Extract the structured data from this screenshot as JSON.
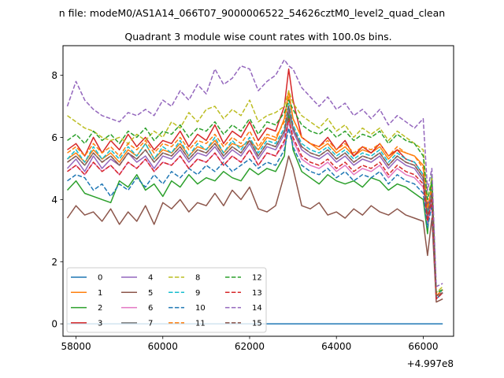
{
  "chart_data": {
    "type": "line",
    "suptitle": "n file: modeM0/AS1A14_066T07_9000006522_54626cztM0_level2_quad_clean",
    "title": "Quadrant 3 module wise count rates with 100.0s bins.",
    "xlabel": "",
    "ylabel": "",
    "x_offset_label": "+4.997e8",
    "xlim": [
      57700,
      66700
    ],
    "ylim": [
      -0.4,
      8.95
    ],
    "x_ticks": [
      58000,
      60000,
      62000,
      64000,
      66000
    ],
    "y_ticks": [
      0,
      2,
      4,
      6,
      8
    ],
    "x_tick_labels": [
      "58000",
      "60000",
      "62000",
      "64000",
      "66000"
    ],
    "y_tick_labels": [
      "0",
      "2",
      "4",
      "6",
      "8"
    ],
    "legend_position": "lower-left",
    "legend_columns": 4,
    "x": [
      57800,
      58000,
      58200,
      58400,
      58600,
      58800,
      59000,
      59200,
      59400,
      59600,
      59800,
      60000,
      60200,
      60400,
      60600,
      60800,
      61000,
      61200,
      61400,
      61600,
      61800,
      62000,
      62200,
      62400,
      62600,
      62800,
      62900,
      63000,
      63200,
      63400,
      63600,
      63800,
      64000,
      64200,
      64400,
      64600,
      64800,
      65000,
      65200,
      65400,
      65600,
      65800,
      66000,
      66100,
      66200,
      66300,
      66450
    ],
    "series": [
      {
        "name": "0",
        "color": "#1f77b4",
        "dash": "solid",
        "values": [
          0,
          0,
          0,
          0,
          0,
          0,
          0,
          0,
          0,
          0,
          0,
          0,
          0,
          0,
          0,
          0,
          0,
          0,
          0,
          0,
          0,
          0,
          0,
          0,
          0,
          0,
          0,
          0,
          0,
          0,
          0,
          0,
          0,
          0,
          0,
          0,
          0,
          0,
          0,
          0,
          0,
          0,
          0,
          0,
          0,
          0,
          0
        ]
      },
      {
        "name": "1",
        "color": "#ff7f0e",
        "dash": "solid",
        "values": [
          5.3,
          5.5,
          5.2,
          5.6,
          5.3,
          5.5,
          5.2,
          5.6,
          5.4,
          5.8,
          5.3,
          5.6,
          5.5,
          5.8,
          5.4,
          5.7,
          5.6,
          5.9,
          5.5,
          5.8,
          5.7,
          5.9,
          5.6,
          6.0,
          5.9,
          6.6,
          7.5,
          6.6,
          6.0,
          5.8,
          5.6,
          5.8,
          5.5,
          5.7,
          5.4,
          5.6,
          5.5,
          5.7,
          5.3,
          5.6,
          5.5,
          5.4,
          5.1,
          3.6,
          4.4,
          0.9,
          1.1
        ]
      },
      {
        "name": "2",
        "color": "#2ca02c",
        "dash": "solid",
        "values": [
          4.3,
          4.6,
          4.2,
          4.1,
          4.0,
          3.9,
          4.6,
          4.4,
          4.8,
          4.3,
          4.5,
          4.1,
          4.6,
          4.4,
          4.8,
          4.5,
          4.7,
          4.6,
          4.9,
          4.7,
          4.6,
          5.0,
          4.8,
          5.0,
          4.9,
          5.4,
          6.8,
          5.6,
          4.9,
          4.7,
          4.5,
          4.8,
          4.6,
          4.5,
          4.6,
          4.4,
          4.7,
          4.6,
          4.3,
          4.5,
          4.4,
          4.2,
          4.0,
          2.9,
          4.8,
          0.8,
          1.0
        ]
      },
      {
        "name": "3",
        "color": "#d62728",
        "dash": "solid",
        "values": [
          5.6,
          5.8,
          5.4,
          6.0,
          5.5,
          5.9,
          5.6,
          6.1,
          5.7,
          6.0,
          5.6,
          5.9,
          5.8,
          6.2,
          5.7,
          6.1,
          5.9,
          6.4,
          5.8,
          6.2,
          6.0,
          6.5,
          5.9,
          6.3,
          6.2,
          7.0,
          8.2,
          7.2,
          6.0,
          5.8,
          5.7,
          6.0,
          5.6,
          5.9,
          5.4,
          5.7,
          5.5,
          5.8,
          5.4,
          5.6,
          5.3,
          5.2,
          4.8,
          3.8,
          4.3,
          0.9,
          1.1
        ]
      },
      {
        "name": "4",
        "color": "#9467bd",
        "dash": "solid",
        "values": [
          5.0,
          5.3,
          4.9,
          5.4,
          5.0,
          5.3,
          5.1,
          5.5,
          5.2,
          5.4,
          5.0,
          5.4,
          5.3,
          5.6,
          5.2,
          5.5,
          5.4,
          5.7,
          5.3,
          5.6,
          5.4,
          5.8,
          5.3,
          5.7,
          5.6,
          6.1,
          6.9,
          6.2,
          5.6,
          5.4,
          5.3,
          5.5,
          5.2,
          5.4,
          5.1,
          5.3,
          5.2,
          5.4,
          5.0,
          5.3,
          5.1,
          5.0,
          4.6,
          3.4,
          4.1,
          0.9,
          1.0
        ]
      },
      {
        "name": "5",
        "color": "#8c564b",
        "dash": "solid",
        "values": [
          3.4,
          3.8,
          3.5,
          3.6,
          3.3,
          3.7,
          3.2,
          3.6,
          3.3,
          3.8,
          3.2,
          3.9,
          3.7,
          4.0,
          3.6,
          3.9,
          3.8,
          4.2,
          3.8,
          4.3,
          4.0,
          4.4,
          3.7,
          3.6,
          3.8,
          4.8,
          5.4,
          5.0,
          3.8,
          3.7,
          3.9,
          3.5,
          3.6,
          3.4,
          3.7,
          3.5,
          3.8,
          3.6,
          3.5,
          3.7,
          3.5,
          3.4,
          3.3,
          2.2,
          3.4,
          0.7,
          0.8
        ]
      },
      {
        "name": "6",
        "color": "#e377c2",
        "dash": "solid",
        "values": [
          4.9,
          5.1,
          4.8,
          5.2,
          4.9,
          5.1,
          4.8,
          5.2,
          5.0,
          5.3,
          4.9,
          5.2,
          5.1,
          5.4,
          5.0,
          5.3,
          5.2,
          5.5,
          5.1,
          5.4,
          5.2,
          5.6,
          5.1,
          5.5,
          5.4,
          5.8,
          6.5,
          5.9,
          5.3,
          5.1,
          5.0,
          5.2,
          4.9,
          5.1,
          4.8,
          5.0,
          4.9,
          5.1,
          4.7,
          5.0,
          4.8,
          4.7,
          4.4,
          3.2,
          3.9,
          0.8,
          1.0
        ]
      },
      {
        "name": "7",
        "color": "#7f7f7f",
        "dash": "solid",
        "values": [
          5.2,
          5.4,
          5.1,
          5.5,
          5.2,
          5.4,
          5.1,
          5.5,
          5.3,
          5.6,
          5.2,
          5.5,
          5.4,
          5.7,
          5.3,
          5.6,
          5.5,
          5.8,
          5.4,
          5.7,
          5.5,
          5.9,
          5.4,
          5.8,
          5.7,
          6.2,
          7.0,
          6.3,
          5.7,
          5.5,
          5.4,
          5.6,
          5.3,
          5.5,
          5.2,
          5.4,
          5.3,
          5.5,
          5.1,
          5.4,
          5.2,
          5.1,
          4.7,
          3.5,
          4.2,
          0.9,
          1.0
        ]
      },
      {
        "name": "8",
        "color": "#bcbd22",
        "dash": "dashed",
        "values": [
          6.7,
          6.5,
          6.3,
          6.2,
          6.0,
          5.9,
          6.0,
          5.8,
          6.1,
          5.9,
          6.2,
          6.0,
          6.5,
          6.3,
          6.8,
          6.5,
          6.9,
          7.0,
          6.6,
          6.9,
          6.7,
          7.2,
          6.5,
          6.7,
          6.8,
          7.0,
          7.5,
          7.1,
          6.7,
          6.5,
          6.3,
          6.6,
          6.2,
          6.4,
          6.0,
          6.3,
          6.1,
          6.3,
          5.9,
          6.2,
          6.0,
          5.8,
          5.6,
          4.0,
          4.7,
          1.0,
          1.2
        ]
      },
      {
        "name": "9",
        "color": "#17becf",
        "dash": "dashed",
        "values": [
          5.3,
          5.6,
          5.2,
          5.7,
          5.3,
          5.6,
          5.3,
          5.7,
          5.4,
          5.8,
          5.3,
          5.7,
          5.5,
          5.9,
          5.4,
          5.8,
          5.6,
          6.0,
          5.5,
          5.9,
          5.6,
          6.0,
          5.5,
          5.9,
          5.8,
          6.3,
          7.1,
          6.4,
          5.8,
          5.6,
          5.5,
          5.7,
          5.4,
          5.6,
          5.3,
          5.5,
          5.4,
          5.6,
          5.2,
          5.5,
          5.3,
          5.2,
          4.8,
          3.6,
          4.3,
          0.9,
          1.1
        ]
      },
      {
        "name": "10",
        "color": "#1f77b4",
        "dash": "dashed",
        "values": [
          4.6,
          4.8,
          4.7,
          4.3,
          4.5,
          4.1,
          4.5,
          4.3,
          4.7,
          4.4,
          4.8,
          4.5,
          4.9,
          4.7,
          5.0,
          4.8,
          5.1,
          4.9,
          5.2,
          4.9,
          5.1,
          5.3,
          5.0,
          5.2,
          5.1,
          5.6,
          6.3,
          5.7,
          5.1,
          4.9,
          4.8,
          5.0,
          4.7,
          4.9,
          4.6,
          4.8,
          4.7,
          4.9,
          4.5,
          4.8,
          4.6,
          4.5,
          4.2,
          3.1,
          3.8,
          0.8,
          1.0
        ]
      },
      {
        "name": "11",
        "color": "#ff7f0e",
        "dash": "dashed",
        "values": [
          5.5,
          5.7,
          5.4,
          5.8,
          5.5,
          5.7,
          5.4,
          5.8,
          5.6,
          5.9,
          5.5,
          5.8,
          5.7,
          6.0,
          5.6,
          5.9,
          5.8,
          6.1,
          5.7,
          6.0,
          5.8,
          6.2,
          5.7,
          6.1,
          6.0,
          6.5,
          7.3,
          6.6,
          6.0,
          5.8,
          5.7,
          5.9,
          5.6,
          5.8,
          5.5,
          5.7,
          5.6,
          5.8,
          5.4,
          5.7,
          5.5,
          5.4,
          5.0,
          3.7,
          4.4,
          0.9,
          1.1
        ]
      },
      {
        "name": "12",
        "color": "#2ca02c",
        "dash": "dashed",
        "values": [
          5.9,
          6.1,
          5.8,
          6.2,
          5.9,
          6.1,
          5.8,
          6.2,
          6.0,
          6.3,
          5.9,
          6.2,
          6.1,
          6.4,
          6.0,
          6.3,
          6.2,
          6.5,
          6.1,
          6.4,
          6.2,
          6.6,
          6.1,
          6.5,
          6.4,
          6.8,
          7.2,
          6.9,
          6.4,
          6.2,
          6.1,
          6.3,
          6.0,
          6.2,
          5.9,
          6.1,
          6.0,
          6.2,
          5.8,
          6.1,
          5.9,
          5.8,
          5.4,
          4.0,
          4.6,
          1.0,
          1.1
        ]
      },
      {
        "name": "13",
        "color": "#d62728",
        "dash": "dashed",
        "values": [
          4.9,
          5.1,
          4.8,
          5.2,
          4.9,
          5.1,
          4.8,
          5.2,
          5.0,
          5.3,
          4.9,
          5.2,
          5.1,
          5.4,
          5.0,
          5.3,
          5.2,
          5.5,
          5.1,
          5.4,
          5.2,
          5.6,
          5.1,
          5.5,
          5.4,
          5.9,
          6.6,
          6.0,
          5.4,
          5.2,
          5.1,
          5.3,
          5.0,
          5.2,
          4.9,
          5.1,
          5.0,
          5.2,
          4.8,
          5.1,
          4.9,
          4.8,
          4.5,
          3.3,
          4.0,
          0.8,
          1.0
        ]
      },
      {
        "name": "14",
        "color": "#9467bd",
        "dash": "dashed",
        "values": [
          7.0,
          7.8,
          7.2,
          6.9,
          6.7,
          6.6,
          6.5,
          6.8,
          6.7,
          6.9,
          6.7,
          7.2,
          7.0,
          7.5,
          7.2,
          7.7,
          7.4,
          8.2,
          7.7,
          7.9,
          8.3,
          8.2,
          7.5,
          7.8,
          8.0,
          8.5,
          8.3,
          8.2,
          7.6,
          7.3,
          7.0,
          7.3,
          6.9,
          7.1,
          6.7,
          6.9,
          6.6,
          6.9,
          6.4,
          6.7,
          6.5,
          6.3,
          6.6,
          4.3,
          5.0,
          1.2,
          1.3
        ]
      },
      {
        "name": "15",
        "color": "#8c564b",
        "dash": "dashed",
        "values": [
          5.2,
          5.4,
          5.1,
          5.5,
          5.2,
          5.4,
          5.1,
          5.5,
          5.3,
          5.6,
          5.2,
          5.5,
          5.4,
          5.7,
          5.3,
          5.6,
          5.5,
          5.8,
          5.4,
          5.7,
          5.5,
          5.9,
          5.4,
          5.8,
          5.7,
          6.2,
          7.0,
          6.3,
          5.7,
          5.5,
          5.4,
          5.6,
          5.3,
          5.5,
          5.2,
          5.4,
          5.3,
          5.5,
          5.1,
          5.4,
          5.2,
          5.1,
          4.7,
          3.5,
          4.2,
          0.9,
          1.0
        ]
      }
    ]
  }
}
